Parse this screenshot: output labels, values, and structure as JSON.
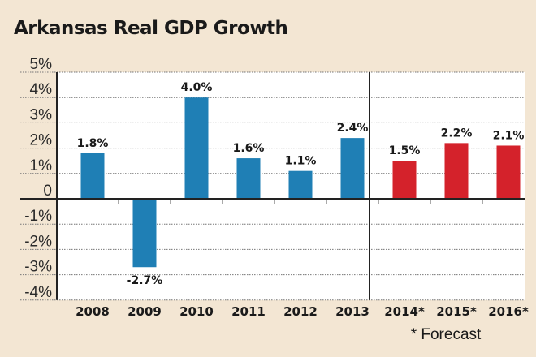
{
  "chart_data": {
    "type": "bar",
    "title": "Arkansas Real GDP Growth",
    "categories": [
      "2008",
      "2009",
      "2010",
      "2011",
      "2012",
      "2013",
      "2014*",
      "2015*",
      "2016*"
    ],
    "values": [
      1.8,
      -2.7,
      4.0,
      1.6,
      1.1,
      2.4,
      1.5,
      2.2,
      2.1
    ],
    "data_labels": [
      "1.8%",
      "-2.7%",
      "4.0%",
      "1.6%",
      "1.1%",
      "2.4%",
      "1.5%",
      "2.2%",
      "2.1%"
    ],
    "forecast": [
      false,
      false,
      false,
      false,
      false,
      false,
      true,
      true,
      true
    ],
    "ylim": [
      -4,
      5
    ],
    "yticks": [
      5,
      4,
      3,
      2,
      1,
      0,
      -1,
      -2,
      -3,
      -4
    ],
    "ytick_labels": [
      "5%",
      "4%",
      "3%",
      "2%",
      "1%",
      "0",
      "-1%",
      "-2%",
      "-3%",
      "-4%"
    ],
    "grid": true,
    "note": "* Forecast",
    "colors": {
      "actual": "#1f7fb5",
      "forecast": "#d4222b",
      "background": "#f3e6d3",
      "plot": "#ffffff"
    }
  }
}
